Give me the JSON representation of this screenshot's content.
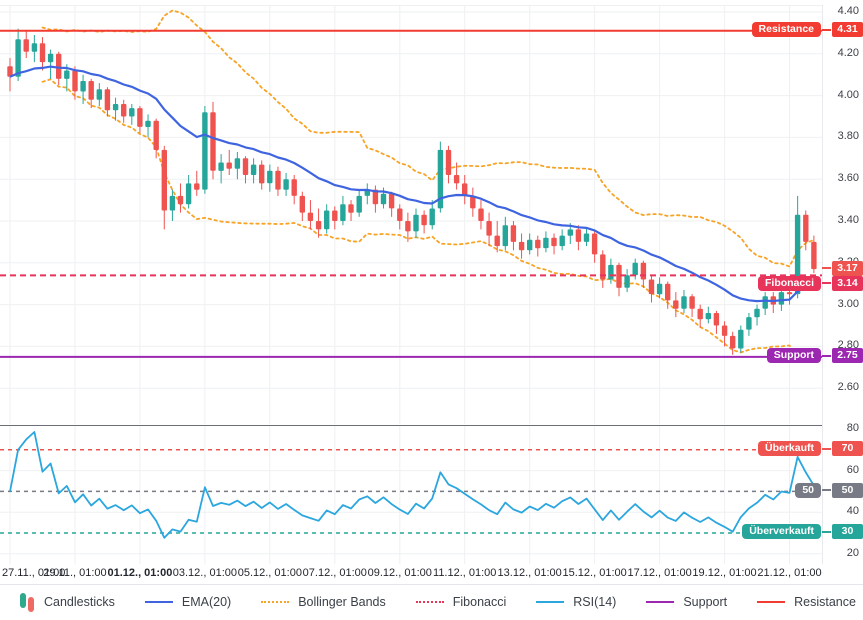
{
  "ui": {
    "legend": [
      {
        "label": "Candlesticks",
        "type": "candles",
        "colors": [
          "#2fa98c",
          "#ef6a64"
        ]
      },
      {
        "label": "EMA(20)",
        "type": "line",
        "color": "#3f64e0"
      },
      {
        "label": "Bollinger Bands",
        "type": "dotted",
        "color": "#f7a325"
      },
      {
        "label": "Fibonacci",
        "type": "dotted",
        "color": "#e8335a"
      },
      {
        "label": "RSI(14)",
        "type": "line",
        "color": "#2ba6de"
      },
      {
        "label": "Support",
        "type": "line",
        "color": "#9c27b0"
      },
      {
        "label": "Resistance",
        "type": "line",
        "color": "#f23c32"
      }
    ]
  },
  "chart_data": {
    "type": "candlestick",
    "panels": [
      "price",
      "rsi"
    ],
    "x_labels": [
      "27.11., 01:00",
      "29.11., 01:00",
      "01.12., 01:00",
      "03.12., 01:00",
      "05.12., 01:00",
      "07.12., 01:00",
      "09.12., 01:00",
      "11.12., 01:00",
      "13.12., 01:00",
      "15.12., 01:00",
      "17.12., 01:00",
      "19.12., 01:00",
      "21.12., 01:00"
    ],
    "bold_x_label_index": 2,
    "candles_per_day": 4,
    "price_axis": {
      "ticks": [
        4.4,
        4.2,
        4.0,
        3.8,
        3.6,
        3.4,
        3.2,
        3.0,
        2.8,
        2.6
      ],
      "tick_labels": [
        "4.40",
        "4.20",
        "4.00",
        "3.80",
        "3.60",
        "3.40",
        "3.20",
        "3.00",
        "2.80",
        "2.60"
      ],
      "grid": true
    },
    "colors": {
      "up": "#26a69a",
      "down": "#ef5350",
      "ema": "#3f64e0",
      "bollinger": "#f7a325",
      "fibonacci": "#e8335a",
      "support": "#9c27b0",
      "resistance": "#f23c32",
      "rsi": "#2ba6de",
      "grid": "#eef0f2"
    },
    "indicators": {
      "ema_period": 20,
      "bollinger_period": 20,
      "bollinger_stddev": 2,
      "rsi_period": 14
    },
    "candles": [
      [
        4.14,
        4.18,
        4.02,
        4.09
      ],
      [
        4.09,
        4.32,
        4.07,
        4.27
      ],
      [
        4.27,
        4.31,
        4.18,
        4.21
      ],
      [
        4.21,
        4.29,
        4.16,
        4.25
      ],
      [
        4.25,
        4.28,
        4.12,
        4.16
      ],
      [
        4.16,
        4.22,
        4.08,
        4.2
      ],
      [
        4.2,
        4.21,
        4.05,
        4.08
      ],
      [
        4.08,
        4.15,
        4.02,
        4.12
      ],
      [
        4.12,
        4.14,
        3.98,
        4.02
      ],
      [
        4.02,
        4.1,
        3.96,
        4.07
      ],
      [
        4.07,
        4.08,
        3.94,
        3.98
      ],
      [
        3.98,
        4.06,
        3.95,
        4.03
      ],
      [
        4.03,
        4.04,
        3.9,
        3.93
      ],
      [
        3.93,
        3.99,
        3.88,
        3.96
      ],
      [
        3.96,
        3.98,
        3.87,
        3.9
      ],
      [
        3.9,
        3.96,
        3.86,
        3.94
      ],
      [
        3.94,
        3.95,
        3.82,
        3.85
      ],
      [
        3.85,
        3.91,
        3.8,
        3.88
      ],
      [
        3.88,
        3.89,
        3.7,
        3.74
      ],
      [
        3.74,
        3.76,
        3.36,
        3.45
      ],
      [
        3.45,
        3.55,
        3.4,
        3.52
      ],
      [
        3.52,
        3.58,
        3.44,
        3.48
      ],
      [
        3.48,
        3.62,
        3.46,
        3.58
      ],
      [
        3.58,
        3.64,
        3.52,
        3.55
      ],
      [
        3.55,
        3.95,
        3.53,
        3.92
      ],
      [
        3.92,
        3.97,
        3.6,
        3.64
      ],
      [
        3.64,
        3.72,
        3.58,
        3.68
      ],
      [
        3.68,
        3.74,
        3.62,
        3.65
      ],
      [
        3.65,
        3.73,
        3.6,
        3.7
      ],
      [
        3.7,
        3.71,
        3.58,
        3.62
      ],
      [
        3.62,
        3.7,
        3.58,
        3.67
      ],
      [
        3.67,
        3.69,
        3.55,
        3.58
      ],
      [
        3.58,
        3.67,
        3.54,
        3.64
      ],
      [
        3.64,
        3.66,
        3.52,
        3.55
      ],
      [
        3.55,
        3.63,
        3.52,
        3.6
      ],
      [
        3.6,
        3.62,
        3.48,
        3.52
      ],
      [
        3.52,
        3.54,
        3.4,
        3.44
      ],
      [
        3.44,
        3.5,
        3.36,
        3.4
      ],
      [
        3.4,
        3.46,
        3.32,
        3.36
      ],
      [
        3.36,
        3.48,
        3.34,
        3.45
      ],
      [
        3.45,
        3.47,
        3.36,
        3.4
      ],
      [
        3.4,
        3.52,
        3.38,
        3.48
      ],
      [
        3.48,
        3.5,
        3.4,
        3.44
      ],
      [
        3.44,
        3.55,
        3.42,
        3.52
      ],
      [
        3.52,
        3.58,
        3.48,
        3.55
      ],
      [
        3.55,
        3.57,
        3.44,
        3.48
      ],
      [
        3.48,
        3.56,
        3.46,
        3.53
      ],
      [
        3.53,
        3.54,
        3.42,
        3.46
      ],
      [
        3.46,
        3.48,
        3.36,
        3.4
      ],
      [
        3.4,
        3.44,
        3.3,
        3.35
      ],
      [
        3.35,
        3.46,
        3.32,
        3.43
      ],
      [
        3.43,
        3.45,
        3.34,
        3.38
      ],
      [
        3.38,
        3.5,
        3.36,
        3.46
      ],
      [
        3.46,
        3.78,
        3.44,
        3.74
      ],
      [
        3.74,
        3.76,
        3.58,
        3.62
      ],
      [
        3.62,
        3.68,
        3.55,
        3.58
      ],
      [
        3.58,
        3.62,
        3.48,
        3.52
      ],
      [
        3.52,
        3.56,
        3.42,
        3.46
      ],
      [
        3.46,
        3.5,
        3.36,
        3.4
      ],
      [
        3.4,
        3.44,
        3.28,
        3.33
      ],
      [
        3.33,
        3.4,
        3.25,
        3.28
      ],
      [
        3.28,
        3.42,
        3.26,
        3.38
      ],
      [
        3.38,
        3.4,
        3.26,
        3.3
      ],
      [
        3.3,
        3.34,
        3.22,
        3.26
      ],
      [
        3.26,
        3.34,
        3.24,
        3.31
      ],
      [
        3.31,
        3.33,
        3.23,
        3.27
      ],
      [
        3.27,
        3.35,
        3.25,
        3.32
      ],
      [
        3.32,
        3.34,
        3.24,
        3.28
      ],
      [
        3.28,
        3.36,
        3.26,
        3.33
      ],
      [
        3.33,
        3.39,
        3.29,
        3.36
      ],
      [
        3.36,
        3.38,
        3.26,
        3.3
      ],
      [
        3.3,
        3.37,
        3.28,
        3.34
      ],
      [
        3.34,
        3.35,
        3.2,
        3.24
      ],
      [
        3.24,
        3.26,
        3.08,
        3.12
      ],
      [
        3.12,
        3.22,
        3.1,
        3.19
      ],
      [
        3.19,
        3.2,
        3.04,
        3.08
      ],
      [
        3.08,
        3.17,
        3.06,
        3.14
      ],
      [
        3.14,
        3.22,
        3.12,
        3.2
      ],
      [
        3.2,
        3.21,
        3.08,
        3.12
      ],
      [
        3.12,
        3.14,
        3.01,
        3.05
      ],
      [
        3.05,
        3.13,
        3.03,
        3.1
      ],
      [
        3.1,
        3.11,
        2.98,
        3.02
      ],
      [
        3.02,
        3.06,
        2.94,
        2.98
      ],
      [
        2.98,
        3.07,
        2.96,
        3.04
      ],
      [
        3.04,
        3.05,
        2.94,
        2.98
      ],
      [
        2.98,
        3.0,
        2.89,
        2.93
      ],
      [
        2.93,
        2.99,
        2.91,
        2.96
      ],
      [
        2.96,
        2.97,
        2.86,
        2.9
      ],
      [
        2.9,
        2.92,
        2.8,
        2.85
      ],
      [
        2.85,
        2.87,
        2.76,
        2.79
      ],
      [
        2.79,
        2.9,
        2.77,
        2.88
      ],
      [
        2.88,
        2.96,
        2.85,
        2.94
      ],
      [
        2.94,
        3.0,
        2.9,
        2.98
      ],
      [
        2.98,
        3.06,
        2.95,
        3.04
      ],
      [
        3.04,
        3.06,
        2.96,
        3.0
      ],
      [
        3.0,
        3.08,
        2.97,
        3.06
      ],
      [
        3.06,
        3.09,
        3.0,
        3.05
      ],
      [
        3.05,
        3.52,
        3.03,
        3.43
      ],
      [
        3.43,
        3.45,
        3.26,
        3.3
      ],
      [
        3.3,
        3.33,
        3.15,
        3.17
      ]
    ],
    "levels": {
      "resistance": {
        "label": "Resistance",
        "value": 4.31,
        "display": "4.31",
        "color": "#f23c32"
      },
      "last_price": {
        "value": 3.17,
        "display": "3.17",
        "color": "#ef5350"
      },
      "fibonacci": {
        "label": "Fibonacci",
        "value": 3.14,
        "display": "3.14",
        "color": "#e8335a"
      },
      "support": {
        "label": "Support",
        "value": 2.75,
        "display": "2.75",
        "color": "#9c27b0"
      }
    },
    "rsi_axis": {
      "ticks": [
        80,
        70,
        60,
        50,
        40,
        30,
        20
      ],
      "tick_labels": [
        "80",
        "70",
        "60",
        "50",
        "40",
        "30",
        "20"
      ]
    },
    "rsi_levels": {
      "overbought": {
        "label": "Überkauft",
        "value": 70,
        "display": "70",
        "color": "#ef5350"
      },
      "middle": {
        "label": "50",
        "value": 50,
        "display": "50",
        "color": "#787b86"
      },
      "oversold": {
        "label": "Überverkauft",
        "value": 30,
        "display": "30",
        "color": "#26a69a"
      }
    }
  }
}
